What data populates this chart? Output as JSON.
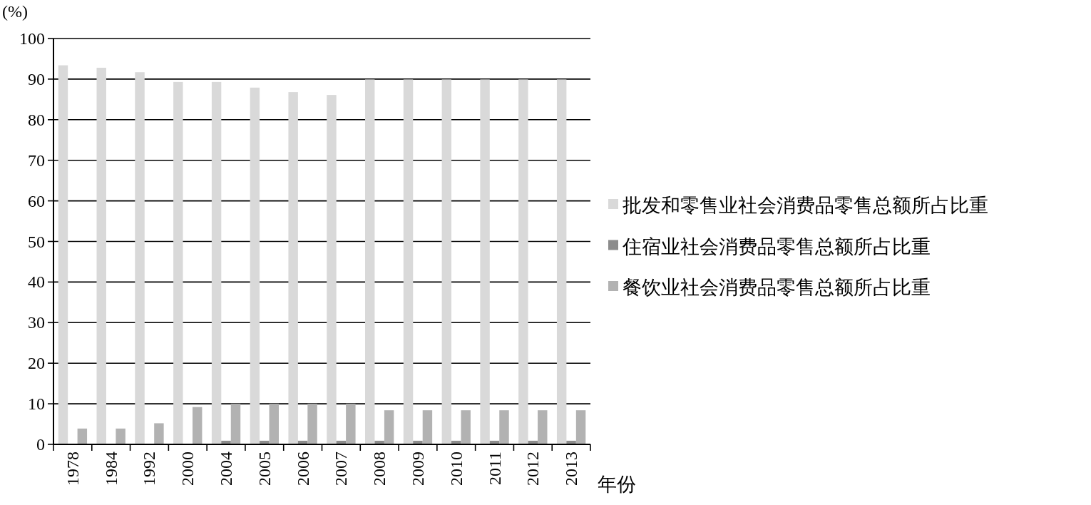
{
  "chart_data": {
    "type": "bar",
    "ylabel": "(%)",
    "xlabel": "年份",
    "categories": [
      "1978",
      "1984",
      "1992",
      "2000",
      "2004",
      "2005",
      "2006",
      "2007",
      "2008",
      "2009",
      "2010",
      "2011",
      "2012",
      "2013"
    ],
    "series": [
      {
        "name": "批发和零售业社会消费品零售总额所占比重",
        "color": "#d9d9d9",
        "values": [
          93.4,
          92.8,
          91.7,
          89.3,
          89.3,
          87.9,
          86.8,
          86.1,
          89.9,
          89.9,
          89.9,
          89.9,
          89.9,
          89.9
        ]
      },
      {
        "name": "住宿业社会消费品零售总额所占比重",
        "color": "#8c8c8c",
        "values": [
          0,
          0,
          0,
          0,
          0.9,
          0.9,
          0.9,
          0.9,
          0.9,
          0.9,
          0.9,
          0.9,
          0.9,
          0.9
        ]
      },
      {
        "name": "餐饮业社会消费品零售总额所占比重",
        "color": "#b2b2b2",
        "values": [
          3.9,
          3.9,
          5.2,
          9.2,
          10,
          10,
          10,
          10,
          8.4,
          8.4,
          8.4,
          8.4,
          8.4,
          8.4
        ]
      }
    ],
    "ylim": [
      0,
      100
    ],
    "yticks": [
      0,
      10,
      20,
      30,
      40,
      50,
      60,
      70,
      80,
      90,
      100
    ],
    "grid": "y",
    "legend": "right"
  }
}
